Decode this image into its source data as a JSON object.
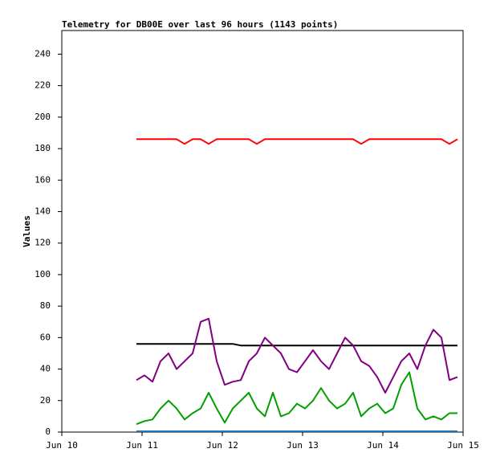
{
  "chart_data": {
    "type": "line",
    "title": "Telemetry for DB00E over last 96 hours (1143 points)",
    "ylabel": "Values",
    "x": [
      10.93,
      11.03,
      11.13,
      11.23,
      11.33,
      11.43,
      11.53,
      11.63,
      11.73,
      11.83,
      11.93,
      12.03,
      12.13,
      12.23,
      12.33,
      12.43,
      12.53,
      12.63,
      12.73,
      12.83,
      12.93,
      13.03,
      13.13,
      13.23,
      13.33,
      13.43,
      13.53,
      13.63,
      13.73,
      13.83,
      13.93,
      14.03,
      14.13,
      14.23,
      14.33,
      14.43,
      14.53,
      14.63,
      14.73,
      14.83,
      14.93
    ],
    "series": [
      {
        "color": "#ff0000",
        "values": [
          186,
          186,
          186,
          186,
          186,
          186,
          183,
          186,
          186,
          183,
          186,
          186,
          186,
          186,
          186,
          183,
          186,
          186,
          186,
          186,
          186,
          186,
          186,
          186,
          186,
          186,
          186,
          186,
          183,
          186,
          186,
          186,
          186,
          186,
          186,
          186,
          186,
          186,
          186,
          183,
          186
        ]
      },
      {
        "color": "#000000",
        "values": [
          56,
          56,
          56,
          56,
          56,
          56,
          56,
          56,
          56,
          56,
          56,
          56,
          56,
          55,
          55,
          55,
          55,
          55,
          55,
          55,
          55,
          55,
          55,
          55,
          55,
          55,
          55,
          55,
          55,
          55,
          55,
          55,
          55,
          55,
          55,
          55,
          55,
          55,
          55,
          55,
          55
        ]
      },
      {
        "color": "#800080",
        "values": [
          33,
          36,
          32,
          45,
          50,
          40,
          45,
          50,
          70,
          72,
          45,
          30,
          32,
          33,
          45,
          50,
          60,
          55,
          50,
          40,
          38,
          45,
          52,
          45,
          40,
          50,
          60,
          55,
          45,
          42,
          35,
          25,
          35,
          45,
          50,
          40,
          55,
          65,
          60,
          33,
          35
        ]
      },
      {
        "color": "#00a000",
        "values": [
          5,
          7,
          8,
          15,
          20,
          15,
          8,
          12,
          15,
          25,
          15,
          6,
          15,
          20,
          25,
          15,
          10,
          25,
          10,
          12,
          18,
          15,
          20,
          28,
          20,
          15,
          18,
          25,
          10,
          15,
          18,
          12,
          15,
          30,
          38,
          15,
          8,
          10,
          8,
          12,
          12
        ]
      },
      {
        "color": "#1f77b4",
        "values": [
          0.5,
          0.5,
          0.5,
          0.5,
          0.5,
          0.5,
          0.5,
          0.5,
          0.5,
          0.5,
          0.5,
          0.5,
          0.5,
          0.5,
          0.5,
          0.5,
          0.5,
          0.5,
          0.5,
          0.5,
          0.5,
          0.5,
          0.5,
          0.5,
          0.5,
          0.5,
          0.5,
          0.5,
          0.5,
          0.5,
          0.5,
          0.5,
          0.5,
          0.5,
          0.5,
          0.5,
          0.5,
          0.5,
          0.5,
          0.5,
          0.5
        ]
      }
    ],
    "xlim": [
      10,
      15
    ],
    "xticks": [
      {
        "value": 10,
        "label": "Jun 10"
      },
      {
        "value": 11,
        "label": "Jun 11"
      },
      {
        "value": 12,
        "label": "Jun 12"
      },
      {
        "value": 13,
        "label": "Jun 13"
      },
      {
        "value": 14,
        "label": "Jun 14"
      },
      {
        "value": 15,
        "label": "Jun 15"
      }
    ],
    "ylim": [
      0,
      255
    ],
    "yticks": [
      0,
      20,
      40,
      60,
      80,
      100,
      120,
      140,
      160,
      180,
      200,
      220,
      240
    ]
  }
}
